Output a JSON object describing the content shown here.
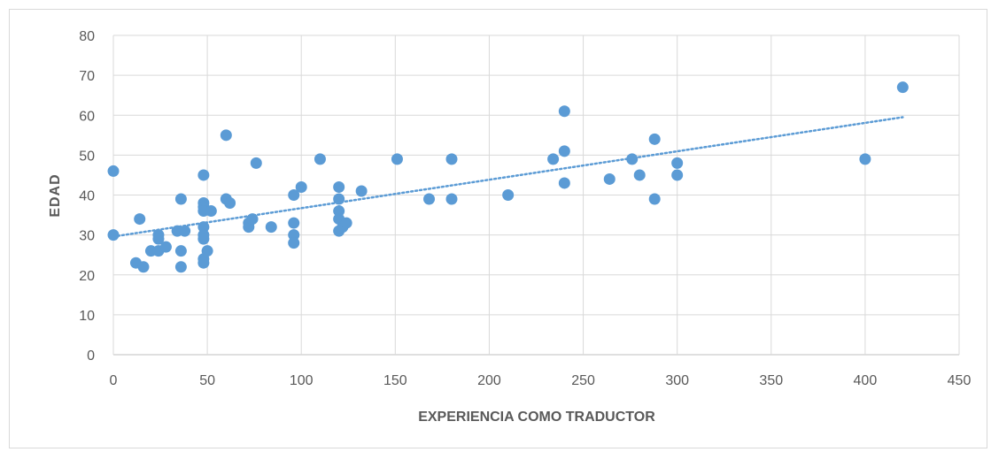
{
  "chart_data": {
    "type": "scatter",
    "title": "",
    "xlabel": "EXPERIENCIA  COMO TRADUCTOR",
    "ylabel": "EDAD",
    "xlim": [
      0,
      450
    ],
    "ylim": [
      0,
      80
    ],
    "x_ticks": [
      "0",
      "50",
      "100",
      "150",
      "200",
      "250",
      "300",
      "350",
      "400",
      "450"
    ],
    "y_ticks": [
      "0",
      "10",
      "20",
      "30",
      "40",
      "50",
      "60",
      "70",
      "80"
    ],
    "grid": true,
    "legend": "none",
    "point_color": "#5b9bd5",
    "trendline": {
      "type": "linear",
      "style": "dotted",
      "color": "#5b9bd5",
      "x": [
        0,
        420
      ],
      "y": [
        29.6,
        59.5
      ]
    },
    "points": [
      [
        0,
        46
      ],
      [
        0,
        30
      ],
      [
        12,
        23
      ],
      [
        14,
        34
      ],
      [
        16,
        22
      ],
      [
        20,
        26
      ],
      [
        24,
        30
      ],
      [
        24,
        29
      ],
      [
        24,
        26
      ],
      [
        28,
        27
      ],
      [
        34,
        31
      ],
      [
        36,
        39
      ],
      [
        36,
        26
      ],
      [
        36,
        22
      ],
      [
        38,
        31
      ],
      [
        48,
        45
      ],
      [
        48,
        38
      ],
      [
        48,
        37
      ],
      [
        48,
        36
      ],
      [
        48,
        32
      ],
      [
        48,
        30
      ],
      [
        48,
        29
      ],
      [
        48,
        24
      ],
      [
        48,
        23
      ],
      [
        50,
        26
      ],
      [
        52,
        36
      ],
      [
        60,
        55
      ],
      [
        60,
        39
      ],
      [
        62,
        38
      ],
      [
        72,
        32
      ],
      [
        72,
        33
      ],
      [
        74,
        34
      ],
      [
        76,
        48
      ],
      [
        84,
        32
      ],
      [
        96,
        40
      ],
      [
        96,
        33
      ],
      [
        96,
        30
      ],
      [
        96,
        28
      ],
      [
        100,
        42
      ],
      [
        110,
        49
      ],
      [
        120,
        42
      ],
      [
        120,
        39
      ],
      [
        120,
        36
      ],
      [
        120,
        34
      ],
      [
        120,
        31
      ],
      [
        122,
        32
      ],
      [
        124,
        33
      ],
      [
        132,
        41
      ],
      [
        151,
        49
      ],
      [
        168,
        39
      ],
      [
        180,
        49
      ],
      [
        180,
        39
      ],
      [
        210,
        40
      ],
      [
        234,
        49
      ],
      [
        240,
        61
      ],
      [
        240,
        51
      ],
      [
        240,
        43
      ],
      [
        264,
        44
      ],
      [
        276,
        49
      ],
      [
        280,
        45
      ],
      [
        288,
        54
      ],
      [
        288,
        39
      ],
      [
        300,
        48
      ],
      [
        300,
        45
      ],
      [
        400,
        49
      ],
      [
        420,
        67
      ]
    ]
  }
}
